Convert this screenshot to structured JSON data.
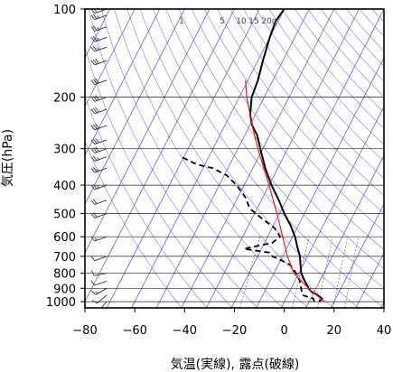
{
  "chart_data": {
    "type": "skew-t log-p",
    "xlabel": "気温(実線), 露点(破線)",
    "ylabel": "気圧(hPa)",
    "xlim": [
      -80,
      40
    ],
    "ylim_hPa": [
      1050,
      100
    ],
    "log_pressure": true,
    "skew_degC_per_log10_pressure": 60,
    "x_ticks": [
      -80,
      -60,
      -40,
      -20,
      0,
      20,
      40
    ],
    "x_tick_labels": [
      "−80",
      "−60",
      "−40",
      "−20",
      "0",
      "20",
      "40"
    ],
    "pressure_ticks": [
      100,
      200,
      300,
      400,
      500,
      600,
      700,
      800,
      900,
      1000
    ],
    "pressure_tick_labels": [
      "100",
      "200",
      "300",
      "400",
      "500",
      "600",
      "700",
      "800",
      "900",
      "1000"
    ],
    "isotherms_degC": [
      -140,
      -130,
      -120,
      -110,
      -100,
      -90,
      -80,
      -70,
      -60,
      -50,
      -40,
      -30,
      -20,
      -10,
      0,
      10,
      20,
      30,
      40
    ],
    "dry_adiabats_K": [
      230,
      240,
      250,
      260,
      270,
      280,
      290,
      300,
      310,
      320,
      330,
      340,
      350,
      360,
      370,
      380,
      390,
      400,
      410,
      420,
      430,
      440,
      450,
      460,
      470,
      480,
      490,
      500
    ],
    "mixing_ratio_lines_gkg": [
      1,
      5,
      10,
      15,
      20
    ],
    "mixing_ratio_labels": [
      "1",
      "5",
      "10",
      "15",
      "20g"
    ],
    "series": [
      {
        "style": "solid",
        "points": [
          {
            "p": 1000,
            "t": 14
          },
          {
            "p": 975,
            "t": 14.5
          },
          {
            "p": 950,
            "t": 12
          },
          {
            "p": 925,
            "t": 9
          },
          {
            "p": 900,
            "t": 7
          },
          {
            "p": 850,
            "t": 4
          },
          {
            "p": 800,
            "t": 1
          },
          {
            "p": 750,
            "t": -1
          },
          {
            "p": 700,
            "t": -3
          },
          {
            "p": 650,
            "t": -6
          },
          {
            "p": 600,
            "t": -9
          },
          {
            "p": 550,
            "t": -13
          },
          {
            "p": 500,
            "t": -18
          },
          {
            "p": 450,
            "t": -23
          },
          {
            "p": 400,
            "t": -29
          },
          {
            "p": 350,
            "t": -35
          },
          {
            "p": 300,
            "t": -41
          },
          {
            "p": 270,
            "t": -45
          },
          {
            "p": 250,
            "t": -49
          },
          {
            "p": 230,
            "t": -52
          },
          {
            "p": 200,
            "t": -55
          },
          {
            "p": 175,
            "t": -56
          },
          {
            "p": 150,
            "t": -58
          },
          {
            "p": 125,
            "t": -60
          },
          {
            "p": 110,
            "t": -61
          },
          {
            "p": 100,
            "t": -60
          }
        ]
      },
      {
        "style": "dashed",
        "points": [
          {
            "p": 1000,
            "t": 12
          },
          {
            "p": 975,
            "t": 11
          },
          {
            "p": 950,
            "t": 6
          },
          {
            "p": 925,
            "t": 5
          },
          {
            "p": 900,
            "t": 4
          },
          {
            "p": 850,
            "t": 2
          },
          {
            "p": 800,
            "t": -1
          },
          {
            "p": 750,
            "t": -5
          },
          {
            "p": 720,
            "t": -10
          },
          {
            "p": 700,
            "t": -14
          },
          {
            "p": 680,
            "t": -16
          },
          {
            "p": 660,
            "t": -27
          },
          {
            "p": 650,
            "t": -24
          },
          {
            "p": 630,
            "t": -17
          },
          {
            "p": 600,
            "t": -15
          },
          {
            "p": 560,
            "t": -19
          },
          {
            "p": 520,
            "t": -26
          },
          {
            "p": 480,
            "t": -33
          },
          {
            "p": 440,
            "t": -37
          },
          {
            "p": 400,
            "t": -43
          },
          {
            "p": 370,
            "t": -49
          },
          {
            "p": 350,
            "t": -56
          },
          {
            "p": 340,
            "t": -63
          },
          {
            "p": 330,
            "t": -67
          },
          {
            "p": 320,
            "t": -71
          }
        ]
      },
      {
        "style": "red-curve",
        "points": [
          {
            "p": 1000,
            "t": 16
          },
          {
            "p": 900,
            "t": 7
          },
          {
            "p": 800,
            "t": -2
          },
          {
            "p": 700,
            "t": -8
          },
          {
            "p": 600,
            "t": -14
          },
          {
            "p": 500,
            "t": -21
          },
          {
            "p": 400,
            "t": -30
          },
          {
            "p": 300,
            "t": -42
          },
          {
            "p": 250,
            "t": -49
          },
          {
            "p": 200,
            "t": -57
          },
          {
            "p": 175,
            "t": -61
          }
        ]
      }
    ],
    "wind_barbs": [
      {
        "p": 1000,
        "dir": 220,
        "kt": 10
      },
      {
        "p": 950,
        "dir": 230,
        "kt": 10
      },
      {
        "p": 900,
        "dir": 240,
        "kt": 15
      },
      {
        "p": 850,
        "dir": 250,
        "kt": 10
      },
      {
        "p": 800,
        "dir": 260,
        "kt": 10
      },
      {
        "p": 700,
        "dir": 250,
        "kt": 10
      },
      {
        "p": 600,
        "dir": 250,
        "kt": 15
      },
      {
        "p": 500,
        "dir": 250,
        "kt": 20
      },
      {
        "p": 450,
        "dir": 250,
        "kt": 20
      },
      {
        "p": 400,
        "dir": 250,
        "kt": 25
      },
      {
        "p": 350,
        "dir": 250,
        "kt": 25
      },
      {
        "p": 320,
        "dir": 250,
        "kt": 25
      },
      {
        "p": 300,
        "dir": 250,
        "kt": 30
      },
      {
        "p": 280,
        "dir": 250,
        "kt": 30
      },
      {
        "p": 250,
        "dir": 250,
        "kt": 30
      },
      {
        "p": 220,
        "dir": 250,
        "kt": 30
      },
      {
        "p": 200,
        "dir": 250,
        "kt": 30
      },
      {
        "p": 175,
        "dir": 250,
        "kt": 30
      },
      {
        "p": 150,
        "dir": 250,
        "kt": 30
      },
      {
        "p": 135,
        "dir": 250,
        "kt": 25
      },
      {
        "p": 125,
        "dir": 250,
        "kt": 25
      },
      {
        "p": 115,
        "dir": 250,
        "kt": 25
      },
      {
        "p": 105,
        "dir": 250,
        "kt": 25
      },
      {
        "p": 100,
        "dir": 250,
        "kt": 20
      }
    ],
    "colors": {
      "isotherm": "#4a55d8",
      "adiabat": "#8a93e6",
      "mixing_ratio": "#555555",
      "temperature": "#000000",
      "dewpoint": "#000000",
      "parcel": "#ee1111",
      "isobar": "#222222",
      "barb": "#333333"
    }
  }
}
